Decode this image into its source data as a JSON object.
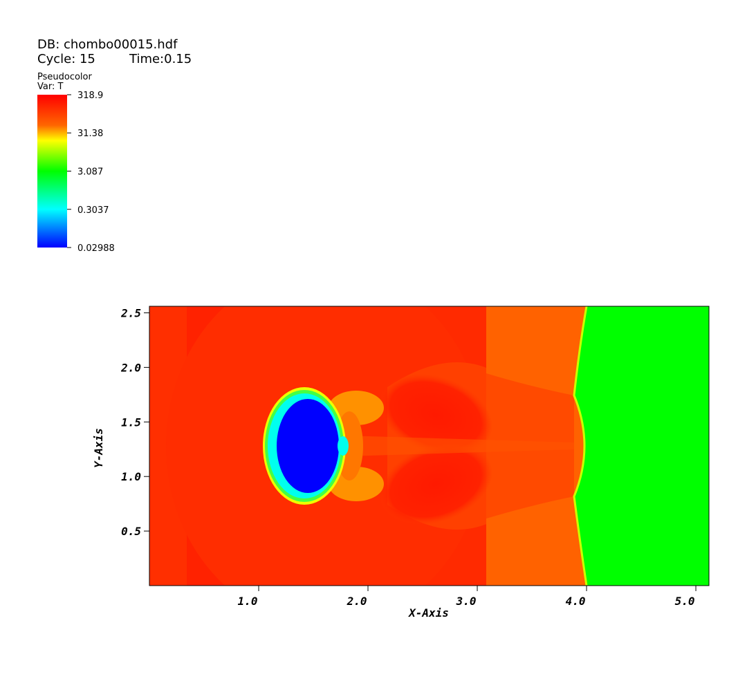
{
  "header": {
    "db": "DB: chombo00015.hdf",
    "cycle": "Cycle: 15",
    "time": "Time:0.15"
  },
  "legend": {
    "title": "Pseudocolor",
    "var": "Var: T",
    "scale": "log",
    "range": [
      0.02988,
      318.9
    ],
    "ticks": [
      318.9,
      31.38,
      3.087,
      0.3037,
      0.02988
    ]
  },
  "plot": {
    "x_label": "X-Axis",
    "y_label": "Y-Axis",
    "xlim": [
      0,
      5.12
    ],
    "ylim": [
      0,
      2.56
    ],
    "xticks": [
      {
        "value": 1,
        "label": "1.0"
      },
      {
        "value": 2,
        "label": "2.0"
      },
      {
        "value": 3,
        "label": "3.0"
      },
      {
        "value": 4,
        "label": "4.0"
      },
      {
        "value": 5,
        "label": "5.0"
      }
    ],
    "yticks": [
      0.5,
      {
        "value": 1,
        "label": "1.0"
      },
      1.5,
      {
        "value": 2,
        "label": "2.0"
      },
      2.5
    ]
  }
}
